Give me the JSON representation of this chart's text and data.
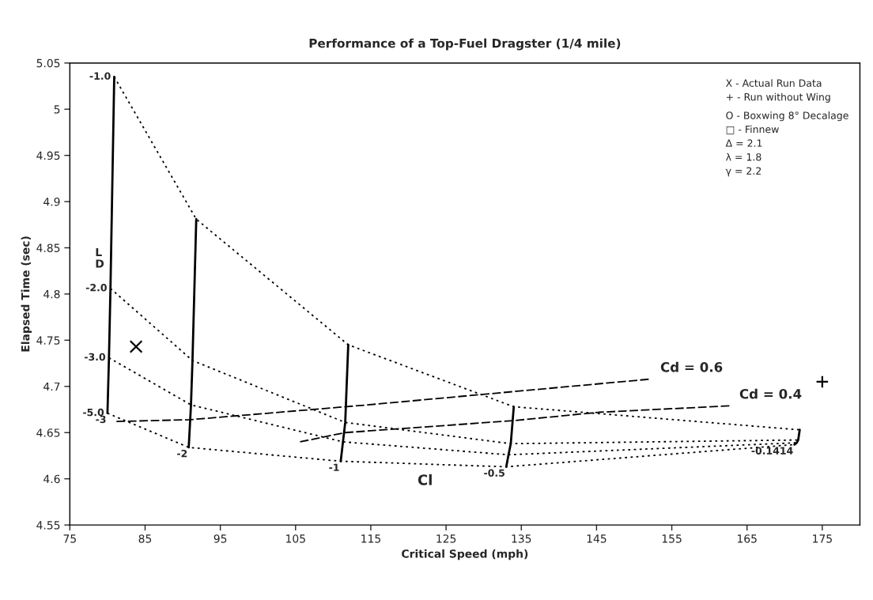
{
  "chart_data": {
    "type": "line",
    "title": "Performance of a Top-Fuel Dragster (1/4 mile)",
    "xlabel": "Critical Speed (mph)",
    "ylabel": "Elapsed Time (sec)",
    "xlim": [
      75,
      180
    ],
    "xticks": [
      75,
      85,
      95,
      105,
      115,
      125,
      135,
      145,
      155,
      165,
      175
    ],
    "ylim": [
      4.55,
      5.05
    ],
    "yticks": [
      4.55,
      4.6,
      4.65,
      4.7,
      4.75,
      4.8,
      4.85,
      4.9,
      4.95,
      5,
      5.05
    ],
    "grid": false,
    "series": [
      {
        "name": "-3",
        "color": "#000000",
        "line_style": "solid",
        "x": [
          80.9,
          80.4,
          80.2,
          80.0
        ],
        "values": [
          5.035,
          4.806,
          4.731,
          4.671
        ]
      },
      {
        "name": "-2",
        "color": "#000000",
        "line_style": "solid",
        "x": [
          91.8,
          91.3,
          91.1,
          90.8
        ],
        "values": [
          4.881,
          4.728,
          4.68,
          4.634
        ]
      },
      {
        "name": "-1",
        "color": "#000000",
        "line_style": "solid",
        "x": [
          112.0,
          111.6,
          111.3,
          111.0
        ],
        "values": [
          4.745,
          4.661,
          4.64,
          4.619
        ]
      },
      {
        "name": "-0.5",
        "color": "#000000",
        "line_style": "solid",
        "x": [
          134.0,
          133.6,
          133.3,
          133.0
        ],
        "values": [
          4.678,
          4.638,
          4.626,
          4.613
        ]
      },
      {
        "name": "-0.1414",
        "color": "#000000",
        "line_style": "solid",
        "x": [
          172.0,
          171.8,
          171.6,
          171.3
        ],
        "values": [
          4.653,
          4.642,
          4.639,
          4.637
        ]
      },
      {
        "name": "-1.0",
        "color": "#000000",
        "line_style": "dotted",
        "x": [
          80.9,
          91.8,
          112.0,
          134.0,
          172.0
        ],
        "values": [
          5.035,
          4.881,
          4.745,
          4.678,
          4.653
        ]
      },
      {
        "name": "-2.0",
        "color": "#000000",
        "line_style": "dotted",
        "x": [
          80.4,
          91.3,
          111.6,
          133.6,
          171.8
        ],
        "values": [
          4.806,
          4.728,
          4.661,
          4.638,
          4.642
        ]
      },
      {
        "name": "-3.0",
        "color": "#000000",
        "line_style": "dotted",
        "x": [
          80.2,
          91.1,
          111.3,
          133.3,
          171.6
        ],
        "values": [
          4.731,
          4.68,
          4.64,
          4.626,
          4.639
        ]
      },
      {
        "name": "-5.0",
        "color": "#000000",
        "line_style": "dotted",
        "x": [
          80.0,
          90.8,
          111.0,
          133.0,
          171.3
        ],
        "values": [
          4.671,
          4.634,
          4.619,
          4.613,
          4.637
        ]
      },
      {
        "name": "Cd = 0.6",
        "color": "#000000",
        "line_style": "dashed",
        "x": [
          81.2,
          91.0,
          114.6,
          152.3
        ],
        "values": [
          4.662,
          4.664,
          4.68,
          4.708
        ]
      },
      {
        "name": "Cd = 0.4",
        "color": "#000000",
        "line_style": "dashed",
        "x": [
          105.6,
          111.6,
          134.0,
          145.3,
          162.8
        ],
        "values": [
          4.64,
          4.65,
          4.663,
          4.672,
          4.679
        ]
      },
      {
        "type": "scatter",
        "color": "#000000",
        "marker": "cross",
        "x": [
          83.8
        ],
        "values": [
          4.743
        ]
      },
      {
        "type": "scatter",
        "color": "#000000",
        "marker": "plus",
        "x": [
          175.0
        ],
        "values": [
          4.705
        ]
      }
    ],
    "annotations": [
      "X - Actual Run Data",
      "+ - Run without Wing",
      "O - Boxwing 8° Decalage",
      "□ - Finnew",
      "Δ = 2.1",
      "λ = 1.8",
      "γ = 2.2",
      "L\nD",
      "Cl"
    ]
  }
}
